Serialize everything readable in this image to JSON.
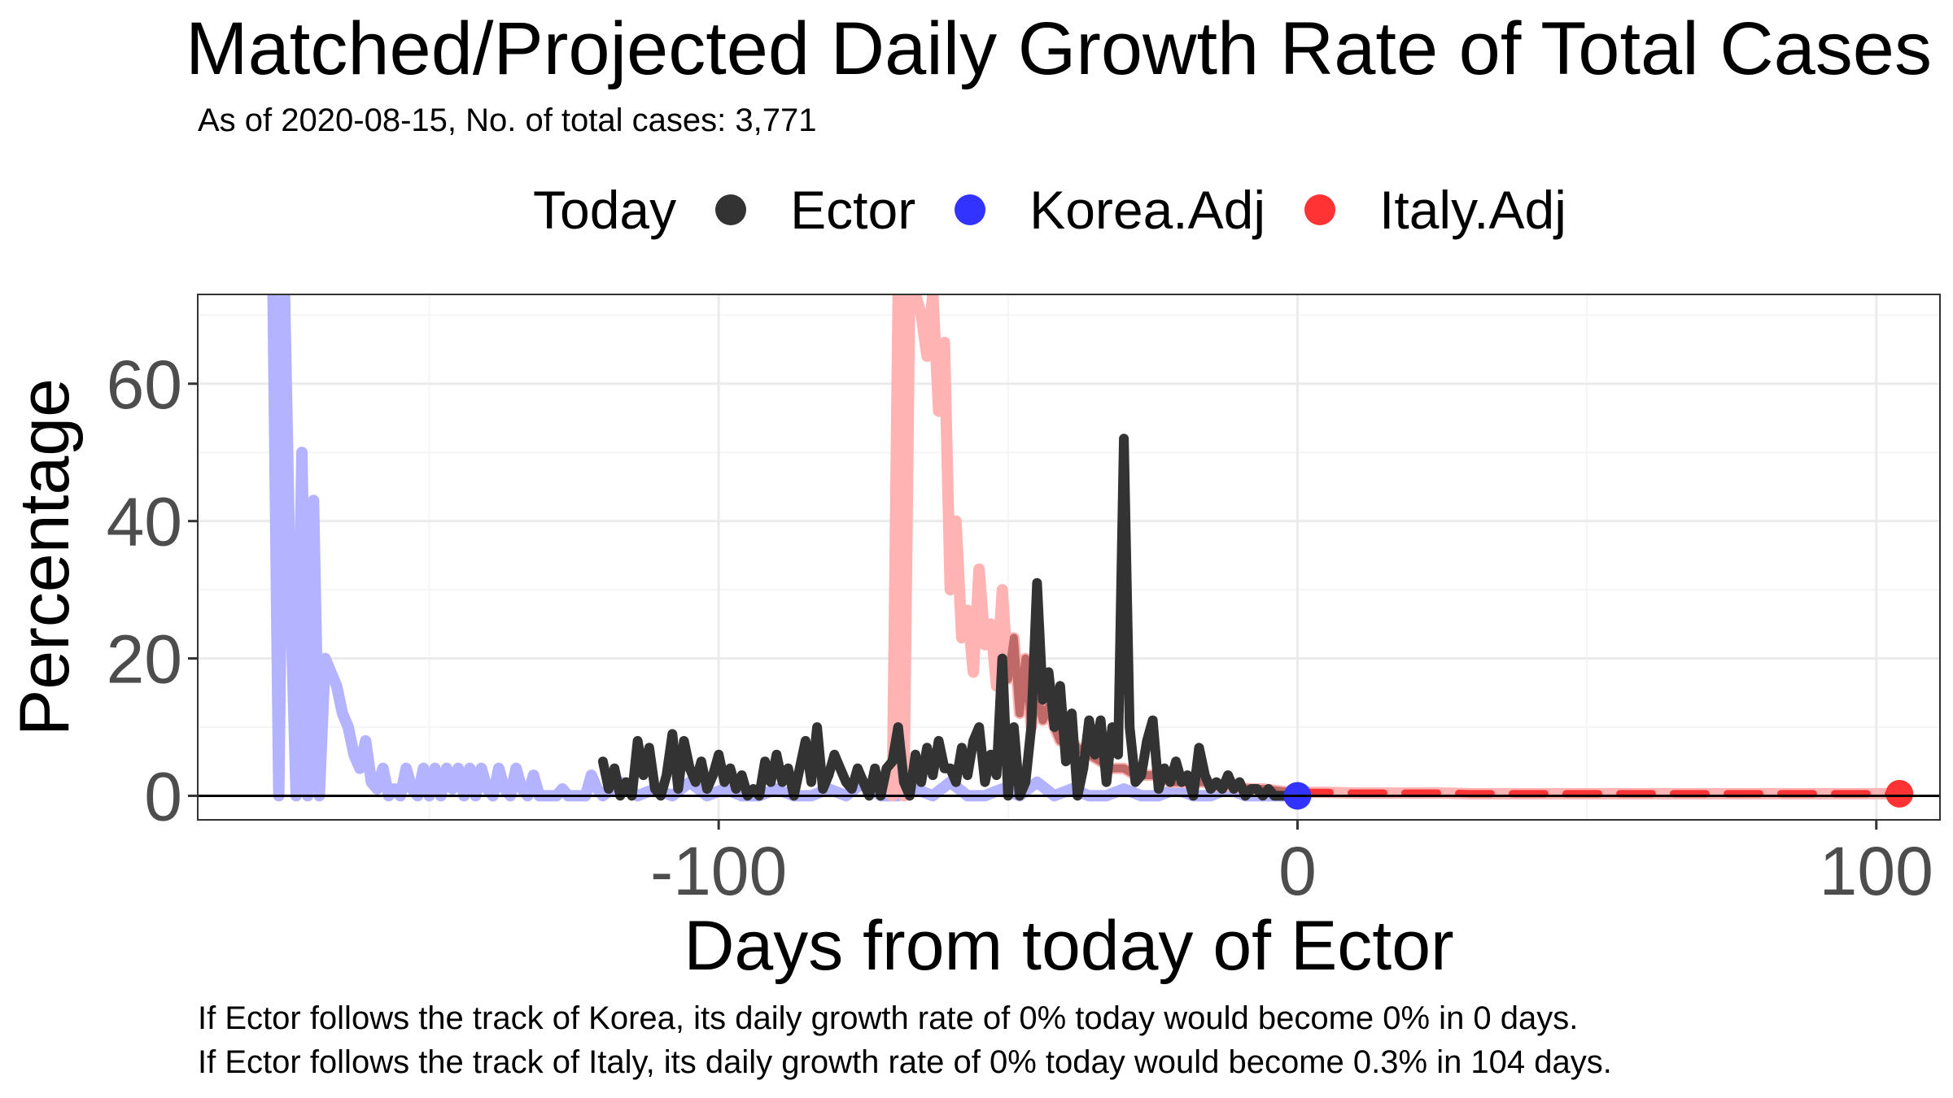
{
  "colors": {
    "ector": "#333333",
    "korea": "#3333ff",
    "korea_line": "#b3b3ff",
    "italy": "#ff3333",
    "italy_line": "#ffb3b3",
    "grid_major": "#ebebeb",
    "grid_minor": "#f5f5f5",
    "axis_text": "#4d4d4d"
  },
  "legend": {
    "title": "Today",
    "items": [
      {
        "label": "Ector",
        "color": "#333333"
      },
      {
        "label": "Korea.Adj",
        "color": "#3333ff"
      },
      {
        "label": "Italy.Adj",
        "color": "#ff3333"
      }
    ]
  },
  "captions": [
    "If Ector follows the track of Korea, its daily growth rate of 0% today would become 0% in 0 days.",
    "If Ector follows the track of Italy, its daily growth rate of 0% today would become 0.3% in 104 days."
  ],
  "chart_data": {
    "type": "line",
    "title": "Matched/Projected Daily Growth Rate of Total Cases",
    "subtitle": "As of 2020-08-15, No. of total cases: 3,771",
    "xlabel": "Days from today of Ector",
    "ylabel": "Percentage",
    "xlim": [
      -190,
      111
    ],
    "ylim": [
      -3.5,
      73
    ],
    "x_ticks": [
      -100,
      0,
      100
    ],
    "x_tick_labels": [
      "-100",
      "0",
      "100"
    ],
    "y_ticks": [
      0,
      20,
      40,
      60
    ],
    "y_tick_labels": [
      "0",
      "20",
      "40",
      "60"
    ],
    "grid": true,
    "legend_position": "top",
    "hline_y": 0,
    "series": [
      {
        "name": "Korea.Adj",
        "style": "line",
        "x": [
          -177,
          -176,
          -175,
          -174,
          -173,
          -172,
          -171,
          -170,
          -169,
          -168,
          -167,
          -166,
          -165,
          -164,
          -163,
          -162,
          -161,
          -160,
          -159,
          -158,
          -157,
          -156,
          -155,
          -154,
          -153,
          -152,
          -151,
          -150,
          -149,
          -148,
          -147,
          -146,
          -145,
          -144,
          -143,
          -142,
          -141,
          -140,
          -139,
          -138,
          -137,
          -136,
          -135,
          -134,
          -133,
          -132,
          -131,
          -130,
          -129,
          -128,
          -127,
          -126,
          -125,
          -124,
          -123,
          -122,
          -121,
          -120,
          -117,
          -114,
          -111,
          -108,
          -105,
          -102,
          -99,
          -96,
          -93,
          -90,
          -87,
          -84,
          -81,
          -78,
          -75,
          -72,
          -69,
          -66,
          -63,
          -60,
          -57,
          -54,
          -51,
          -48,
          -45,
          -42,
          -39,
          -36,
          -33,
          -30,
          -27,
          -24,
          -21,
          -18,
          -15,
          -12,
          -9,
          -6,
          -3,
          0
        ],
        "y": [
          73,
          0,
          73,
          30,
          0,
          50,
          0,
          43,
          0,
          20,
          18,
          16,
          12,
          10,
          6,
          4,
          8,
          2,
          1,
          4,
          0,
          1,
          0,
          4,
          1,
          0,
          4,
          0,
          4,
          0,
          4,
          1,
          4,
          0,
          4,
          0,
          4,
          1,
          0,
          4,
          1,
          0,
          4,
          1,
          0,
          3,
          0,
          0,
          0,
          0,
          1,
          0,
          0,
          0,
          0,
          3,
          1,
          0,
          2,
          0,
          1,
          0,
          2,
          0,
          1,
          0,
          0,
          1,
          0,
          0,
          1,
          0,
          2,
          0,
          0,
          1,
          0,
          2,
          0,
          0,
          1,
          0,
          2,
          0,
          1,
          0,
          0,
          1,
          0,
          0,
          1,
          0,
          0,
          1,
          0,
          0,
          0,
          0
        ]
      },
      {
        "name": "Italy.Adj",
        "style": "line",
        "x": [
          -70,
          -69,
          -68,
          -67,
          -66,
          -65,
          -64,
          -63,
          -62,
          -61,
          -60,
          -59,
          -58,
          -57,
          -56,
          -55,
          -54,
          -53,
          -52,
          -51,
          -50,
          -49,
          -48,
          -47,
          -46,
          -45,
          -44,
          -43,
          -42,
          -41,
          -40,
          -38,
          -36,
          -34,
          -32,
          -30,
          -28,
          -26,
          -24,
          -22,
          -20,
          -18,
          -16,
          -14,
          -12,
          -10,
          -8,
          -6,
          -4,
          -2,
          0,
          5,
          10,
          15,
          20,
          25,
          30,
          35,
          40,
          45,
          50,
          55,
          60,
          65,
          70,
          75,
          80,
          85,
          90,
          95,
          100,
          104
        ],
        "y": [
          0,
          73,
          0,
          73,
          73,
          70,
          64,
          73,
          56,
          66,
          30,
          40,
          23,
          27,
          18,
          33,
          22,
          25,
          16,
          30,
          17,
          23,
          12,
          20,
          10,
          15,
          11,
          13,
          10,
          8,
          9,
          7,
          6,
          5,
          4,
          4,
          3,
          3,
          3,
          2,
          2,
          2,
          2,
          1.5,
          1.5,
          1.2,
          1,
          1,
          0.8,
          0.6,
          0.5,
          0.5,
          0.4,
          0.4,
          0.4,
          0.4,
          0.3,
          0.3,
          0.3,
          0.3,
          0.3,
          0.3,
          0.3,
          0.3,
          0.3,
          0.3,
          0.3,
          0.3,
          0.3,
          0.3,
          0.3,
          0.3
        ]
      },
      {
        "name": "Ector",
        "style": "line",
        "x": [
          -120,
          -119,
          -118,
          -117,
          -116,
          -115,
          -114,
          -113,
          -112,
          -111,
          -110,
          -109,
          -108,
          -107,
          -106,
          -105,
          -104,
          -103,
          -102,
          -101,
          -100,
          -99,
          -98,
          -97,
          -96,
          -95,
          -94,
          -93,
          -92,
          -91,
          -90,
          -89,
          -88,
          -87,
          -86,
          -85,
          -84,
          -83,
          -82,
          -81,
          -80,
          -79,
          -78,
          -77,
          -76,
          -75,
          -74,
          -73,
          -72,
          -71,
          -70,
          -69,
          -68,
          -67,
          -66,
          -65,
          -64,
          -63,
          -62,
          -61,
          -60,
          -59,
          -58,
          -57,
          -56,
          -55,
          -54,
          -53,
          -52,
          -51,
          -50,
          -49,
          -48,
          -47,
          -46,
          -45,
          -44,
          -43,
          -42,
          -41,
          -40,
          -39,
          -38,
          -37,
          -36,
          -35,
          -34,
          -33,
          -32,
          -31,
          -30,
          -29,
          -28,
          -27,
          -26,
          -25,
          -24,
          -23,
          -22,
          -21,
          -20,
          -19,
          -18,
          -17,
          -16,
          -15,
          -14,
          -13,
          -12,
          -11,
          -10,
          -9,
          -8,
          -7,
          -6,
          -5,
          -4,
          -3,
          -2,
          -1,
          0
        ],
        "y": [
          5,
          1,
          4,
          0,
          2,
          0,
          8,
          3,
          7,
          1,
          0,
          3,
          9,
          1,
          8,
          4,
          2,
          5,
          1,
          3,
          6,
          2,
          4,
          1,
          3,
          0,
          1,
          0,
          5,
          2,
          6,
          2,
          4,
          0,
          4,
          8,
          2,
          10,
          1,
          3,
          6,
          4,
          2,
          1,
          4,
          2,
          0,
          4,
          0,
          4,
          5,
          10,
          2,
          0,
          6,
          2,
          7,
          3,
          8,
          4,
          4,
          2,
          7,
          3,
          8,
          10,
          2,
          6,
          3,
          20,
          0,
          10,
          0,
          2,
          10,
          31,
          14,
          18,
          10,
          16,
          5,
          12,
          0,
          4,
          11,
          6,
          11,
          2,
          10,
          6,
          52,
          10,
          2,
          3,
          8,
          11,
          1,
          4,
          2,
          5,
          2,
          3,
          0,
          7,
          3,
          1,
          2,
          1,
          3,
          1,
          2,
          0,
          1,
          1,
          0,
          1,
          0,
          0,
          0,
          0,
          0
        ]
      },
      {
        "name": "Korea.Adj",
        "style": "point",
        "x": [
          0
        ],
        "y": [
          0
        ]
      },
      {
        "name": "Italy.Adj",
        "style": "point",
        "x": [
          104
        ],
        "y": [
          0.3
        ]
      }
    ]
  }
}
